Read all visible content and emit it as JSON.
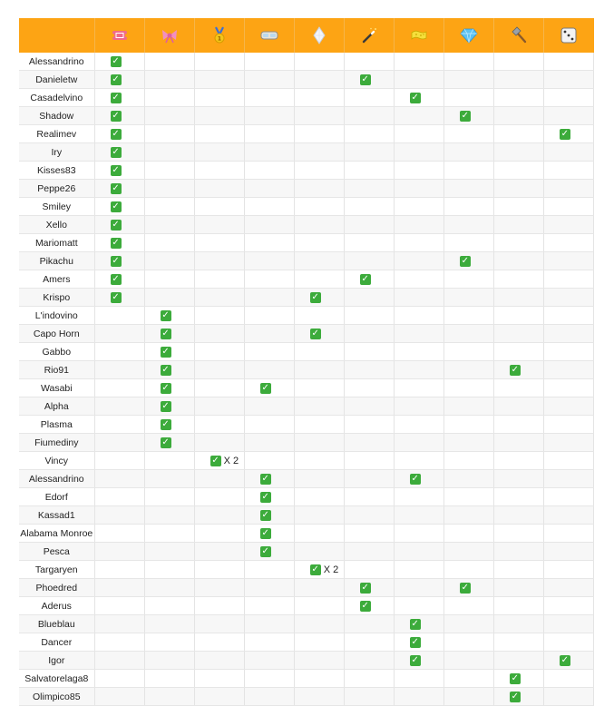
{
  "header_icons": [
    {
      "name": "ticket-icon"
    },
    {
      "name": "ribbon-icon"
    },
    {
      "name": "medal-icon"
    },
    {
      "name": "goggles-icon"
    },
    {
      "name": "gem-outline-icon"
    },
    {
      "name": "magic-wand-icon"
    },
    {
      "name": "sponge-icon"
    },
    {
      "name": "diamond-icon"
    },
    {
      "name": "hammer-icon"
    },
    {
      "name": "dice-icon"
    }
  ],
  "check_glyph": "✓",
  "rows": [
    {
      "name": "Alessandrino",
      "marks": [
        {
          "col": 0
        }
      ]
    },
    {
      "name": "Danieletw",
      "marks": [
        {
          "col": 0
        },
        {
          "col": 5
        }
      ]
    },
    {
      "name": "Casadelvino",
      "marks": [
        {
          "col": 0
        },
        {
          "col": 6
        }
      ]
    },
    {
      "name": "Shadow",
      "marks": [
        {
          "col": 0
        },
        {
          "col": 7
        }
      ]
    },
    {
      "name": "Realimev",
      "marks": [
        {
          "col": 0
        },
        {
          "col": 9
        }
      ]
    },
    {
      "name": "Iry",
      "marks": [
        {
          "col": 0
        }
      ]
    },
    {
      "name": "Kisses83",
      "marks": [
        {
          "col": 0
        }
      ]
    },
    {
      "name": "Peppe26",
      "marks": [
        {
          "col": 0
        }
      ]
    },
    {
      "name": "Smiley",
      "marks": [
        {
          "col": 0
        }
      ]
    },
    {
      "name": "Xello",
      "marks": [
        {
          "col": 0
        }
      ]
    },
    {
      "name": "Mariomatt",
      "marks": [
        {
          "col": 0
        }
      ]
    },
    {
      "name": "Pikachu",
      "marks": [
        {
          "col": 0
        },
        {
          "col": 7
        }
      ]
    },
    {
      "name": "Amers",
      "marks": [
        {
          "col": 0
        },
        {
          "col": 5
        }
      ]
    },
    {
      "name": "Krispo",
      "marks": [
        {
          "col": 0
        },
        {
          "col": 4
        }
      ]
    },
    {
      "name": "L'indovino",
      "marks": [
        {
          "col": 1
        }
      ]
    },
    {
      "name": "Capo Horn",
      "marks": [
        {
          "col": 1
        },
        {
          "col": 4
        }
      ]
    },
    {
      "name": "Gabbo",
      "marks": [
        {
          "col": 1
        }
      ]
    },
    {
      "name": "Rio91",
      "marks": [
        {
          "col": 1
        },
        {
          "col": 8
        }
      ]
    },
    {
      "name": "Wasabi",
      "marks": [
        {
          "col": 1
        },
        {
          "col": 3
        }
      ]
    },
    {
      "name": "Alpha",
      "marks": [
        {
          "col": 1
        }
      ]
    },
    {
      "name": "Plasma",
      "marks": [
        {
          "col": 1
        }
      ]
    },
    {
      "name": "Fiumediny",
      "marks": [
        {
          "col": 1
        }
      ]
    },
    {
      "name": "Vincy",
      "marks": [
        {
          "col": 2,
          "mult": "X 2"
        }
      ]
    },
    {
      "name": "Alessandrino",
      "marks": [
        {
          "col": 3
        },
        {
          "col": 6
        }
      ]
    },
    {
      "name": "Edorf",
      "marks": [
        {
          "col": 3
        }
      ]
    },
    {
      "name": "Kassad1",
      "marks": [
        {
          "col": 3
        }
      ]
    },
    {
      "name": "Alabama Monroe",
      "marks": [
        {
          "col": 3
        }
      ]
    },
    {
      "name": "Pesca",
      "marks": [
        {
          "col": 3
        }
      ]
    },
    {
      "name": "Targaryen",
      "marks": [
        {
          "col": 4,
          "mult": "X 2"
        }
      ]
    },
    {
      "name": "Phoedred",
      "marks": [
        {
          "col": 5
        },
        {
          "col": 7
        }
      ]
    },
    {
      "name": "Aderus",
      "marks": [
        {
          "col": 5
        }
      ]
    },
    {
      "name": "Blueblau",
      "marks": [
        {
          "col": 6
        }
      ]
    },
    {
      "name": "Dancer",
      "marks": [
        {
          "col": 6
        }
      ]
    },
    {
      "name": "Igor",
      "marks": [
        {
          "col": 6
        },
        {
          "col": 9
        }
      ]
    },
    {
      "name": "Salvatorelaga8",
      "marks": [
        {
          "col": 8
        }
      ]
    },
    {
      "name": "Olimpico85",
      "marks": [
        {
          "col": 8
        }
      ]
    }
  ]
}
